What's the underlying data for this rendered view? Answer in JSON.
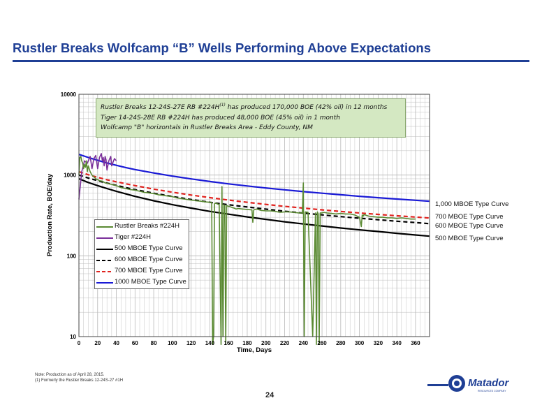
{
  "slide": {
    "title": "Rustler Breaks Wolfcamp “B” Wells Performing Above Expectations",
    "page_number": "24",
    "footnote_1": "Note:   Production as of April 28, 2015.",
    "footnote_2": "(1)      Formerly the Rustler Breaks 12-24S-27 #1H",
    "logo_text": "Matador",
    "logo_subtext": "RESOURCES COMPANY"
  },
  "annotation": {
    "line1_pre": "Rustler Breaks 12-24S-27E RB #224H",
    "line1_sup": "(1)",
    "line1_post": " has produced 170,000 BOE (42% oil) in 12 months",
    "line2": "Tiger 14-24S-28E RB #224H has produced 48,000 BOE (45% oil) in 1 month",
    "line3": "Wolfcamp \"B\" horizontals in Rustler Breaks Area - Eddy County, NM"
  },
  "colors": {
    "green": "#5a8a32",
    "purple": "#7a2f9a",
    "black": "#000000",
    "red": "#e0221e",
    "blue": "#1a1ad6",
    "title_blue": "#1f3f95",
    "annotation_bg": "#d4e8c2"
  },
  "chart_data": {
    "type": "line",
    "xlabel": "Time, Days",
    "ylabel": "Production Rate, BOE/day",
    "xlim": [
      0,
      375
    ],
    "ylim": [
      10,
      10000
    ],
    "yscale": "log",
    "x_ticks": [
      "0",
      "20",
      "40",
      "60",
      "80",
      "100",
      "120",
      "140",
      "160",
      "180",
      "200",
      "220",
      "240",
      "260",
      "280",
      "300",
      "320",
      "340",
      "360"
    ],
    "y_ticks": [
      "10",
      "100",
      "1000",
      "10000"
    ],
    "grid": true,
    "legend_position": "bottom-left",
    "series": [
      {
        "name": "Rustler Breaks #224H",
        "color_key": "green",
        "x": [
          0,
          1,
          2,
          3,
          4,
          5,
          6,
          7,
          8,
          9,
          10,
          12,
          14,
          16,
          18,
          20,
          22,
          25,
          28,
          32,
          36,
          40,
          45,
          50,
          55,
          60,
          65,
          70,
          75,
          80,
          85,
          90,
          95,
          100,
          105,
          110,
          115,
          120,
          125,
          130,
          135,
          140,
          142,
          143,
          144,
          145,
          146,
          148,
          150,
          152,
          153,
          154,
          155,
          156,
          157,
          158,
          160,
          162,
          164,
          166,
          168,
          170,
          175,
          180,
          185,
          186,
          187,
          190,
          195,
          200,
          205,
          210,
          215,
          220,
          225,
          230,
          235,
          239,
          240,
          241,
          242,
          245,
          250,
          253,
          254,
          255,
          256,
          257,
          258,
          260,
          262,
          265,
          270,
          275,
          280,
          285,
          290,
          295,
          300,
          302,
          303,
          304,
          305,
          308,
          310,
          315,
          320,
          325,
          330,
          335,
          340,
          345,
          350,
          355,
          360
        ],
        "y": [
          1000,
          1650,
          1700,
          1500,
          1400,
          1200,
          1350,
          1250,
          1500,
          1100,
          1300,
          1100,
          1000,
          950,
          900,
          880,
          850,
          840,
          800,
          780,
          760,
          740,
          700,
          680,
          660,
          650,
          630,
          610,
          600,
          590,
          570,
          560,
          550,
          540,
          520,
          510,
          500,
          490,
          480,
          475,
          465,
          460,
          460,
          8,
          10,
          440,
          450,
          440,
          430,
          8,
          720,
          10,
          430,
          420,
          8,
          420,
          410,
          405,
          395,
          390,
          380,
          385,
          380,
          375,
          370,
          260,
          370,
          380,
          365,
          360,
          360,
          355,
          345,
          350,
          350,
          345,
          340,
          340,
          800,
          10,
          350,
          345,
          10,
          340,
          8,
          350,
          330,
          8,
          340,
          340,
          345,
          340,
          335,
          330,
          335,
          330,
          330,
          320,
          300,
          230,
          320,
          310,
          325,
          315,
          310,
          305,
          300,
          300,
          295,
          295,
          290,
          295,
          290,
          285,
          285
        ]
      },
      {
        "name": "Tiger #224H",
        "color_key": "purple",
        "x": [
          0,
          3,
          6,
          9,
          12,
          14,
          16,
          18,
          20,
          22,
          24,
          25,
          26,
          27,
          28,
          29,
          30,
          32,
          34,
          35,
          36,
          38,
          40
        ],
        "y": [
          500,
          1100,
          1500,
          1400,
          1700,
          1200,
          1600,
          1750,
          1200,
          1650,
          1850,
          1500,
          1650,
          1300,
          1700,
          1550,
          1150,
          1500,
          1700,
          1300,
          1400,
          1600,
          1500
        ]
      },
      {
        "name": "500 MBOE Type Curve",
        "color_key": "black",
        "style": "solid",
        "label": "500 MBOE Type Curve",
        "x": [
          0,
          10,
          20,
          30,
          40,
          50,
          60,
          80,
          100,
          120,
          140,
          160,
          180,
          200,
          220,
          240,
          260,
          280,
          300,
          320,
          340,
          360,
          375
        ],
        "y": [
          900,
          810,
          740,
          680,
          630,
          585,
          545,
          480,
          430,
          390,
          355,
          328,
          303,
          283,
          264,
          248,
          234,
          221,
          210,
          200,
          190,
          181,
          175
        ]
      },
      {
        "name": "600 MBOE Type Curve",
        "color_key": "black",
        "style": "dashed",
        "label": "600 MBOE Type Curve",
        "x": [
          0,
          10,
          20,
          30,
          40,
          50,
          60,
          80,
          100,
          120,
          140,
          160,
          180,
          200,
          220,
          240,
          260,
          280,
          300,
          320,
          340,
          360,
          375
        ],
        "y": [
          1000,
          920,
          850,
          795,
          745,
          700,
          660,
          595,
          542,
          498,
          460,
          429,
          402,
          378,
          356,
          338,
          321,
          306,
          292,
          280,
          268,
          258,
          250
        ]
      },
      {
        "name": "700 MBOE Type Curve",
        "color_key": "red",
        "style": "dashed",
        "label": "700 MBOE Type Curve",
        "x": [
          0,
          10,
          20,
          30,
          40,
          50,
          60,
          80,
          100,
          120,
          140,
          160,
          180,
          200,
          220,
          240,
          260,
          280,
          300,
          320,
          340,
          360,
          375
        ],
        "y": [
          1100,
          1010,
          935,
          875,
          825,
          780,
          740,
          670,
          612,
          565,
          525,
          490,
          460,
          433,
          410,
          390,
          371,
          354,
          339,
          326,
          313,
          302,
          294
        ]
      },
      {
        "name": "1000 MBOE Type Curve",
        "color_key": "blue",
        "style": "solid",
        "label": "1,000 MBOE Type Curve",
        "x": [
          0,
          10,
          20,
          30,
          40,
          50,
          60,
          80,
          100,
          120,
          140,
          160,
          180,
          200,
          220,
          240,
          260,
          280,
          300,
          320,
          340,
          360,
          375
        ],
        "y": [
          1800,
          1650,
          1520,
          1410,
          1320,
          1240,
          1170,
          1060,
          970,
          895,
          832,
          778,
          732,
          692,
          656,
          624,
          596,
          570,
          546,
          524,
          505,
          487,
          474
        ]
      }
    ]
  }
}
